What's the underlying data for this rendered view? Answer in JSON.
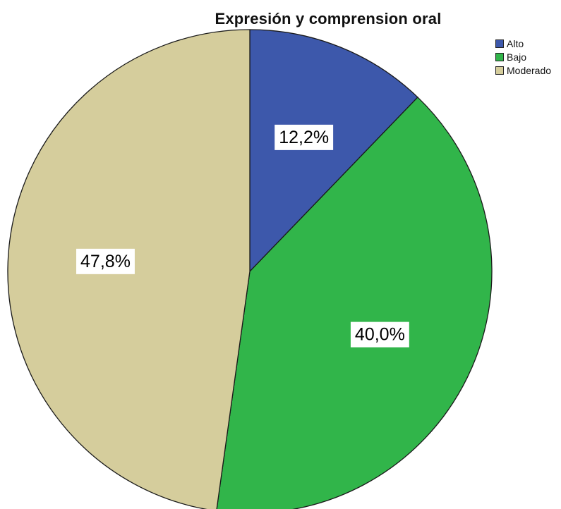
{
  "chart_data": {
    "type": "pie",
    "title": "Expresión y comprension oral",
    "start_angle_deg": 0,
    "direction": "clockwise",
    "slices": [
      {
        "name": "Alto",
        "value": 12.2,
        "label": "12,2%",
        "color": "#3d58ab"
      },
      {
        "name": "Bajo",
        "value": 40.0,
        "label": "40,0%",
        "color": "#31b54a"
      },
      {
        "name": "Moderado",
        "value": 47.8,
        "label": "47,8%",
        "color": "#d5cd9c"
      }
    ],
    "legend": {
      "placement": "top-right",
      "items": [
        {
          "label": "Alto",
          "color": "#3d58ab"
        },
        {
          "label": "Bajo",
          "color": "#31b54a"
        },
        {
          "label": "Moderado",
          "color": "#d5cd9c"
        }
      ]
    }
  }
}
